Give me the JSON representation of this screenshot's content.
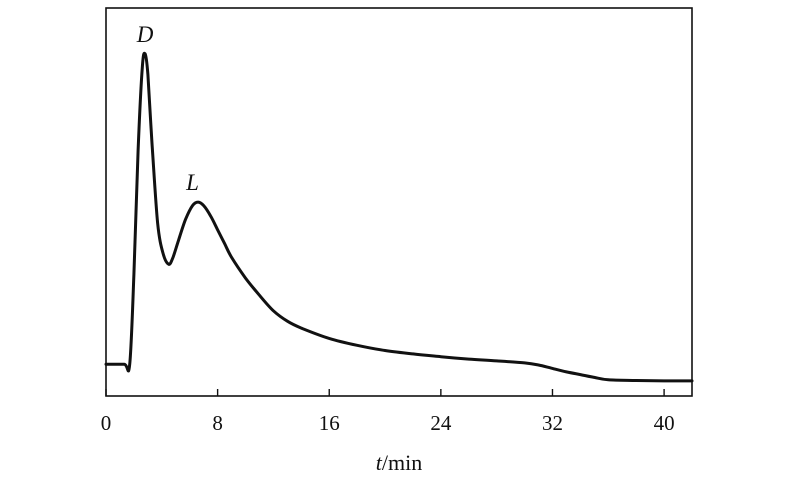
{
  "chart_data": {
    "type": "line",
    "title": "",
    "xlabel": {
      "var": "t",
      "unit": "/min"
    },
    "ylabel": "",
    "xlim": [
      0,
      42
    ],
    "x_ticks": [
      0,
      8,
      16,
      24,
      32,
      40
    ],
    "grid": false,
    "legend": "none",
    "line_color": "#111111",
    "annotations": [
      {
        "text": "D",
        "x": 2.8
      },
      {
        "text": "L",
        "x": 6.2
      }
    ],
    "series": [
      {
        "x": [
          0.0,
          1.3,
          1.7,
          2.0,
          2.3,
          2.6,
          2.8,
          3.0,
          3.3,
          3.7,
          4.1,
          4.5,
          4.8,
          5.2,
          5.7,
          6.2,
          6.6,
          7.0,
          7.5,
          8.0,
          8.5,
          9.0,
          10.0,
          11.0,
          12.0,
          13.0,
          14.0,
          16.0,
          18.0,
          20.0,
          22.0,
          24.0,
          26.0,
          28.0,
          30.0,
          31.0,
          32.0,
          33.0,
          34.0,
          35.0,
          36.0,
          38.0,
          40.0,
          42.0
        ],
        "y": [
          0.06,
          0.06,
          0.06,
          0.32,
          0.68,
          0.92,
          0.96,
          0.9,
          0.7,
          0.47,
          0.38,
          0.35,
          0.37,
          0.42,
          0.48,
          0.52,
          0.53,
          0.52,
          0.49,
          0.45,
          0.41,
          0.37,
          0.31,
          0.26,
          0.215,
          0.185,
          0.165,
          0.135,
          0.115,
          0.1,
          0.09,
          0.082,
          0.075,
          0.07,
          0.064,
          0.058,
          0.048,
          0.038,
          0.03,
          0.022,
          0.015,
          0.013,
          0.012,
          0.012
        ]
      }
    ]
  }
}
